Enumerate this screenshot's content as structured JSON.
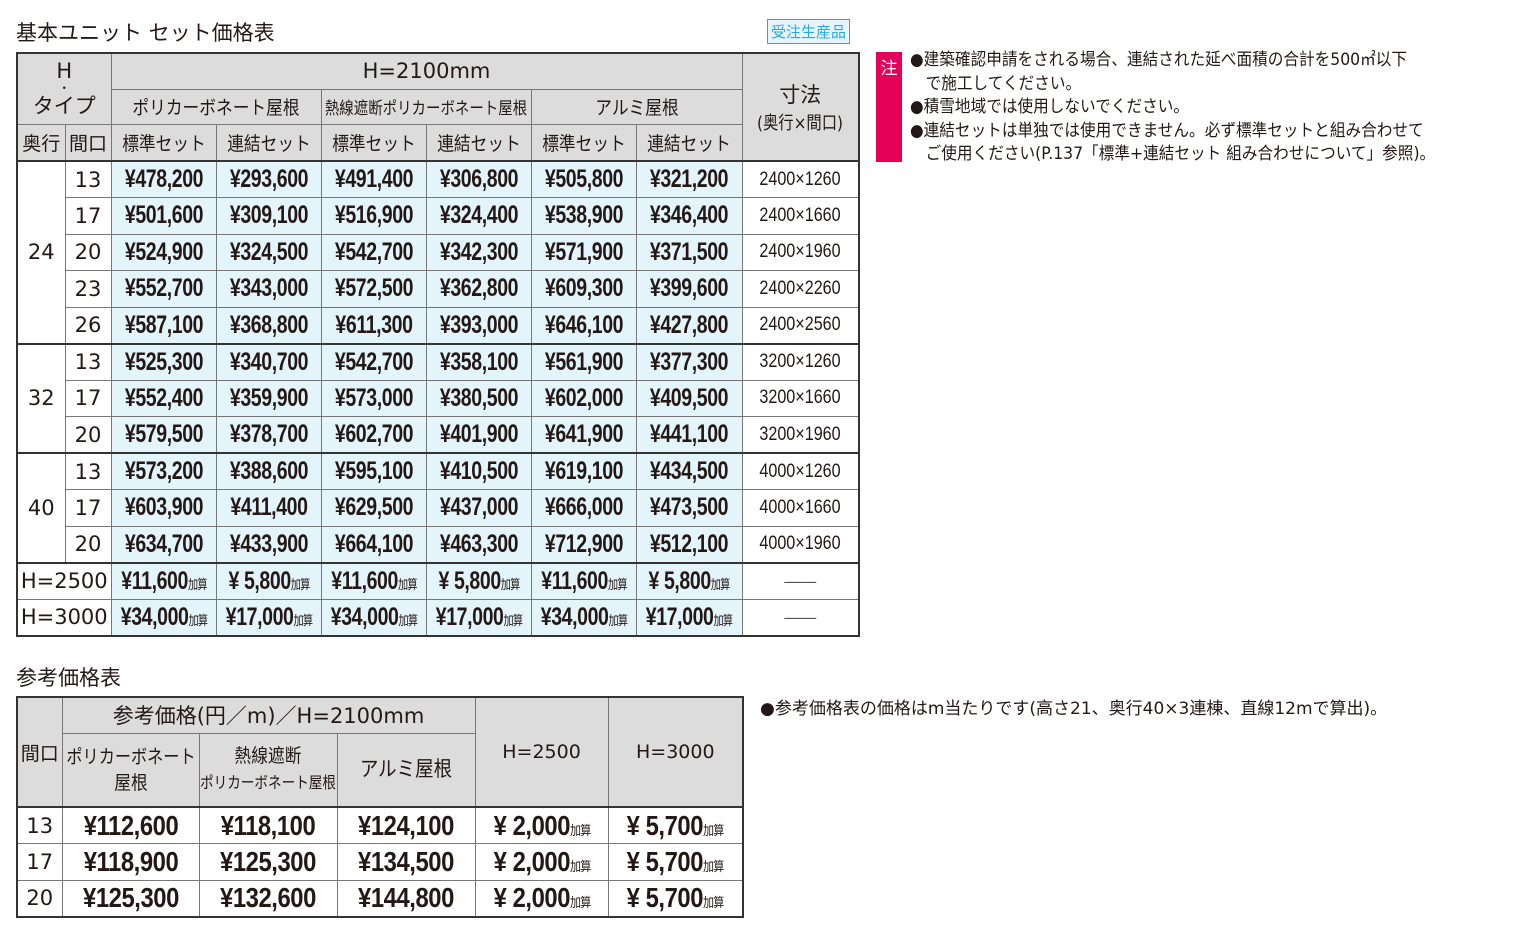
{
  "main": {
    "title": "基本ユニット セット価格表",
    "badge": "受注生産品",
    "header": {
      "h_label": "H",
      "h_dot": "・",
      "type_label": "タイプ",
      "height": "H=2100mm",
      "roofs": [
        "ポリカーボネート屋根",
        "熱線遮断ポリカーボネート屋根",
        "アルミ屋根"
      ],
      "depth": "奥行",
      "width": "間口",
      "sets": [
        "標準セット",
        "連結セット",
        "標準セット",
        "連結セット",
        "標準セット",
        "連結セット"
      ],
      "size_label": "寸法",
      "size_sub": "(奥行×間口)"
    },
    "groups": [
      {
        "depth": "24",
        "rows": [
          {
            "width": "13",
            "prices": [
              "¥478,200",
              "¥293,600",
              "¥491,400",
              "¥306,800",
              "¥505,800",
              "¥321,200"
            ],
            "size": "2400×1260"
          },
          {
            "width": "17",
            "prices": [
              "¥501,600",
              "¥309,100",
              "¥516,900",
              "¥324,400",
              "¥538,900",
              "¥346,400"
            ],
            "size": "2400×1660"
          },
          {
            "width": "20",
            "prices": [
              "¥524,900",
              "¥324,500",
              "¥542,700",
              "¥342,300",
              "¥571,900",
              "¥371,500"
            ],
            "size": "2400×1960"
          },
          {
            "width": "23",
            "prices": [
              "¥552,700",
              "¥343,000",
              "¥572,500",
              "¥362,800",
              "¥609,300",
              "¥399,600"
            ],
            "size": "2400×2260"
          },
          {
            "width": "26",
            "prices": [
              "¥587,100",
              "¥368,800",
              "¥611,300",
              "¥393,000",
              "¥646,100",
              "¥427,800"
            ],
            "size": "2400×2560"
          }
        ]
      },
      {
        "depth": "32",
        "rows": [
          {
            "width": "13",
            "prices": [
              "¥525,300",
              "¥340,700",
              "¥542,700",
              "¥358,100",
              "¥561,900",
              "¥377,300"
            ],
            "size": "3200×1260"
          },
          {
            "width": "17",
            "prices": [
              "¥552,400",
              "¥359,900",
              "¥573,000",
              "¥380,500",
              "¥602,000",
              "¥409,500"
            ],
            "size": "3200×1660"
          },
          {
            "width": "20",
            "prices": [
              "¥579,500",
              "¥378,700",
              "¥602,700",
              "¥401,900",
              "¥641,900",
              "¥441,100"
            ],
            "size": "3200×1960"
          }
        ]
      },
      {
        "depth": "40",
        "rows": [
          {
            "width": "13",
            "prices": [
              "¥573,200",
              "¥388,600",
              "¥595,100",
              "¥410,500",
              "¥619,100",
              "¥434,500"
            ],
            "size": "4000×1260"
          },
          {
            "width": "17",
            "prices": [
              "¥603,900",
              "¥411,400",
              "¥629,500",
              "¥437,000",
              "¥666,000",
              "¥473,500"
            ],
            "size": "4000×1660"
          },
          {
            "width": "20",
            "prices": [
              "¥634,700",
              "¥433,900",
              "¥664,100",
              "¥463,300",
              "¥712,900",
              "¥512,100"
            ],
            "size": "4000×1960"
          }
        ]
      }
    ],
    "extras": [
      {
        "label": "H=2500",
        "prices": [
          "¥11,600",
          "¥ 5,800",
          "¥11,600",
          "¥ 5,800",
          "¥11,600",
          "¥ 5,800"
        ],
        "size": "――"
      },
      {
        "label": "H=3000",
        "prices": [
          "¥34,000",
          "¥17,000",
          "¥34,000",
          "¥17,000",
          "¥34,000",
          "¥17,000"
        ],
        "size": "――"
      }
    ],
    "suffix": "加算"
  },
  "notes": {
    "tag": "注",
    "items": [
      "●建築確認申請をされる場合、連結された延べ面積の合計を500㎡以下",
      "　で施工してください。",
      "●積雪地域では使用しないでください。",
      "●連結セットは単独では使用できません。必ず標準セットと組み合わせて",
      "　ご使用ください(P.137「標準+連結セット 組み合わせについて」参照)。"
    ]
  },
  "reference": {
    "title": "参考価格表",
    "header": {
      "width": "間口",
      "group": "参考価格(円／m)／H=2100mm",
      "roofs": [
        [
          "ポリカーボネート",
          "屋根"
        ],
        [
          "熱線遮断",
          "ポリカーボネート屋根"
        ],
        [
          "アルミ屋根",
          ""
        ]
      ],
      "h2500": "H=2500",
      "h3000": "H=3000"
    },
    "rows": [
      {
        "width": "13",
        "prices": [
          "¥112,600",
          "¥118,100",
          "¥124,100"
        ],
        "h2500": "¥ 2,000",
        "h3000": "¥ 5,700"
      },
      {
        "width": "17",
        "prices": [
          "¥118,900",
          "¥125,300",
          "¥134,500"
        ],
        "h2500": "¥ 2,000",
        "h3000": "¥ 5,700"
      },
      {
        "width": "20",
        "prices": [
          "¥125,300",
          "¥132,600",
          "¥144,800"
        ],
        "h2500": "¥ 2,000",
        "h3000": "¥ 5,700"
      }
    ],
    "suffix": "加算",
    "note": "●参考価格表の価格はm当たりです(高さ21、奥行40×3連棟、直線12mで算出)。"
  },
  "colors": {
    "header_bg": "#dcdcdc",
    "price_bg": "#e3f4fb",
    "badge": "#29a9e0",
    "note_tag": "#e5005a"
  }
}
